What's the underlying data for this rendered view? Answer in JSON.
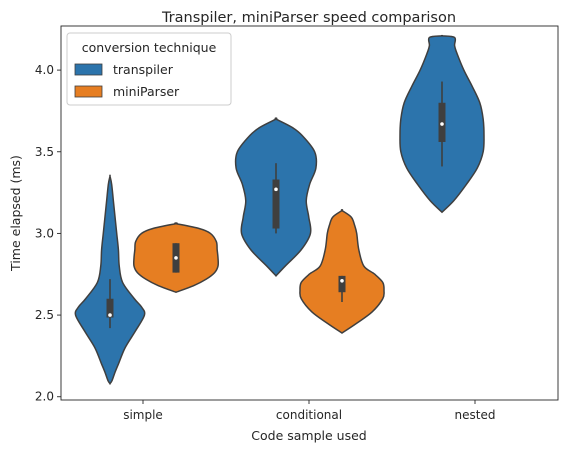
{
  "chart_data": {
    "type": "violin",
    "title": "Transpiler, miniParser speed comparison",
    "xlabel": "Code sample used",
    "ylabel": "Time elapsed (ms)",
    "categories": [
      "simple",
      "conditional",
      "nested"
    ],
    "yticks": [
      "2.0",
      "2.5",
      "3.0",
      "3.5",
      "4.0"
    ],
    "ylim": [
      1.98,
      4.27
    ],
    "legend": {
      "title": "conversion technique",
      "position": "top-left",
      "entries": [
        {
          "name": "transpiler",
          "color": "#2c74ac"
        },
        {
          "name": "miniParser",
          "color": "#e67e22"
        }
      ]
    },
    "series": [
      {
        "name": "transpiler",
        "color": "#2c74ac",
        "violins": [
          {
            "category": "simple",
            "profile": [
              [
                2.08,
                0.0
              ],
              [
                2.1,
                0.05
              ],
              [
                2.15,
                0.12
              ],
              [
                2.2,
                0.2
              ],
              [
                2.3,
                0.36
              ],
              [
                2.4,
                0.6
              ],
              [
                2.5,
                0.82
              ],
              [
                2.55,
                0.75
              ],
              [
                2.6,
                0.58
              ],
              [
                2.7,
                0.3
              ],
              [
                2.8,
                0.22
              ],
              [
                2.9,
                0.2
              ],
              [
                3.0,
                0.16
              ],
              [
                3.1,
                0.12
              ],
              [
                3.2,
                0.08
              ],
              [
                3.3,
                0.04
              ],
              [
                3.35,
                0.0
              ]
            ],
            "box": [
              2.485,
              2.6
            ],
            "whisker": [
              2.42,
              2.72
            ],
            "median": 2.5
          },
          {
            "category": "conditional",
            "profile": [
              [
                2.74,
                0.0
              ],
              [
                2.8,
                0.22
              ],
              [
                2.9,
                0.6
              ],
              [
                3.0,
                0.82
              ],
              [
                3.1,
                0.78
              ],
              [
                3.2,
                0.72
              ],
              [
                3.3,
                0.8
              ],
              [
                3.4,
                0.95
              ],
              [
                3.5,
                0.92
              ],
              [
                3.6,
                0.62
              ],
              [
                3.65,
                0.38
              ],
              [
                3.7,
                0.0
              ]
            ],
            "box": [
              3.03,
              3.33
            ],
            "whisker": [
              3.0,
              3.43
            ],
            "median": 3.27
          },
          {
            "category": "nested",
            "profile": [
              [
                3.13,
                0.0
              ],
              [
                3.2,
                0.28
              ],
              [
                3.3,
                0.58
              ],
              [
                3.4,
                0.84
              ],
              [
                3.5,
                0.98
              ],
              [
                3.6,
                1.0
              ],
              [
                3.7,
                0.98
              ],
              [
                3.8,
                0.9
              ],
              [
                3.9,
                0.72
              ],
              [
                4.0,
                0.52
              ],
              [
                4.1,
                0.36
              ],
              [
                4.15,
                0.3
              ],
              [
                4.2,
                0.3
              ],
              [
                4.21,
                0.0
              ]
            ],
            "box": [
              3.56,
              3.8
            ],
            "whisker": [
              3.41,
              3.93
            ],
            "median": 3.67
          }
        ]
      },
      {
        "name": "miniParser",
        "color": "#e67e22",
        "violins": [
          {
            "category": "simple",
            "profile": [
              [
                2.64,
                0.0
              ],
              [
                2.68,
                0.42
              ],
              [
                2.72,
                0.72
              ],
              [
                2.76,
                0.92
              ],
              [
                2.8,
                1.0
              ],
              [
                2.85,
                1.0
              ],
              [
                2.9,
                0.98
              ],
              [
                2.95,
                0.96
              ],
              [
                3.0,
                0.82
              ],
              [
                3.03,
                0.55
              ],
              [
                3.06,
                0.0
              ]
            ],
            "box": [
              2.76,
              2.94
            ],
            "whisker": [
              2.76,
              2.94
            ],
            "median": 2.85
          },
          {
            "category": "conditional",
            "profile": [
              [
                2.39,
                0.0
              ],
              [
                2.45,
                0.35
              ],
              [
                2.52,
                0.72
              ],
              [
                2.6,
                0.97
              ],
              [
                2.65,
                1.0
              ],
              [
                2.7,
                0.97
              ],
              [
                2.75,
                0.78
              ],
              [
                2.8,
                0.52
              ],
              [
                2.9,
                0.4
              ],
              [
                3.0,
                0.35
              ],
              [
                3.05,
                0.3
              ],
              [
                3.1,
                0.22
              ],
              [
                3.14,
                0.0
              ]
            ],
            "box": [
              2.64,
              2.74
            ],
            "whisker": [
              2.58,
              2.74
            ],
            "median": 2.71
          }
        ]
      }
    ]
  }
}
